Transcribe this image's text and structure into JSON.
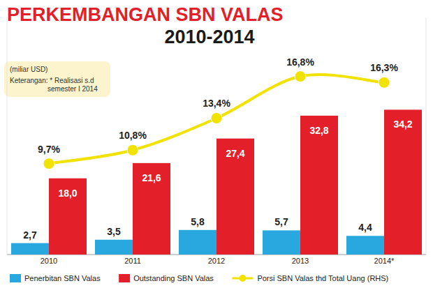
{
  "chart_data": {
    "type": "bar",
    "title": "PERKEMBANGAN SBN VALAS",
    "subtitle": "2010-2014",
    "annotations": [
      "(miliar USD)",
      "Keterangan: * Realisasi s.d semester I 2014"
    ],
    "categories": [
      "2010",
      "2011",
      "2012",
      "2013",
      "2014*"
    ],
    "ylim": [
      0,
      56
    ],
    "y2lim": [
      2.3,
      21.6
    ],
    "tick_labels": false,
    "data_labels": true,
    "legend": "bottom",
    "series": [
      {
        "name": "Penerbitan SBN Valas",
        "type": "bar",
        "color": "#29a8e0",
        "values": [
          2.7,
          3.5,
          5.8,
          5.7,
          4.4
        ],
        "value_labels": [
          "2,7",
          "3,5",
          "5,8",
          "5,7",
          "4,4"
        ]
      },
      {
        "name": "Outstanding SBN Valas",
        "type": "bar",
        "color": "#e3202a",
        "values": [
          18.0,
          21.6,
          27.4,
          32.8,
          34.2
        ],
        "value_labels": [
          "18,0",
          "21,6",
          "27,4",
          "32,8",
          "34,2"
        ]
      },
      {
        "name": "Porsi SBN Valas thd Total Uang (RHS)",
        "type": "line",
        "axis": "y2",
        "color": "#f2e200",
        "marker": "circle",
        "values": [
          9.7,
          10.8,
          13.4,
          16.8,
          16.3
        ],
        "value_labels": [
          "9,7%",
          "10,8%",
          "13,4%",
          "16,8%",
          "16,3%"
        ]
      }
    ]
  }
}
